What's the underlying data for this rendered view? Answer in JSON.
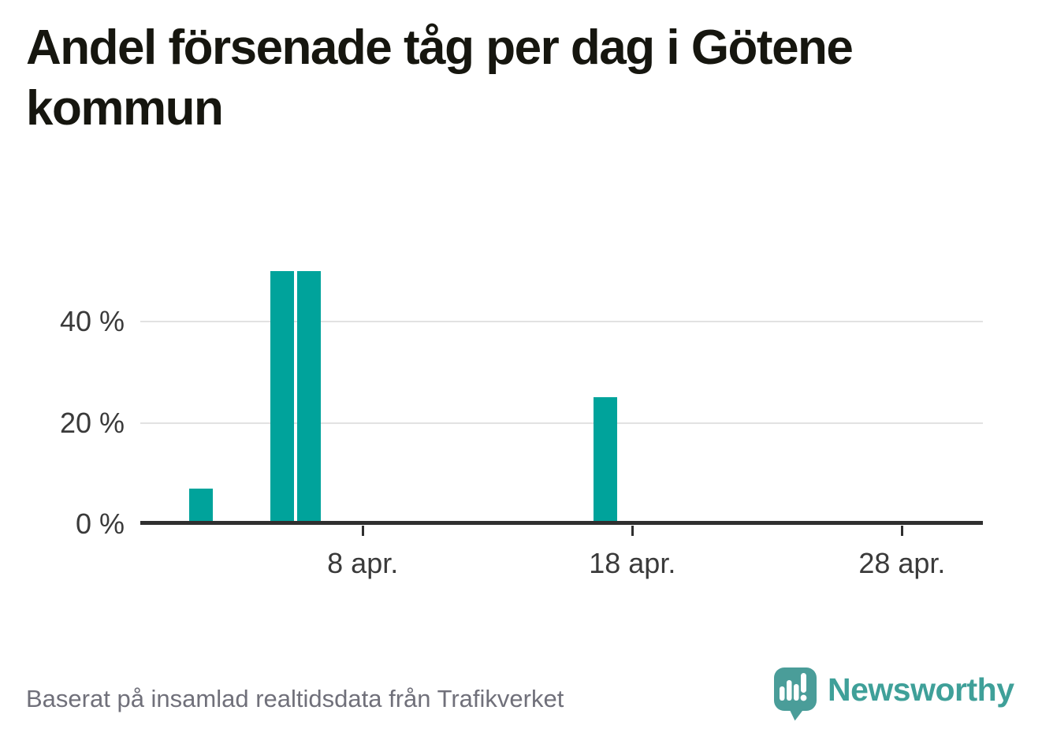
{
  "page": {
    "title_line1": "Andel försenade tåg per dag i Götene",
    "title_line2": "kommun",
    "footer_note": "Baserat på insamlad realtidsdata från Trafikverket",
    "brand": {
      "name": "Newsworthy",
      "wordmark_color": "#3fa099",
      "mark_color": "#4a9d99",
      "mark_icon": "bar-chart-exclamation-bubble-icon"
    }
  },
  "chart_data": {
    "type": "bar",
    "title": "Andel försenade tåg per dag i Götene kommun",
    "xlabel": "",
    "ylabel": "",
    "unit": "%",
    "bar_color": "#00a39b",
    "grid": "horizontal",
    "legend": "none",
    "x_domain_note": "daily series for April; days without a bar are 0 %",
    "xlim_days_april": [
      -0.25,
      31
    ],
    "ylim": [
      0,
      52
    ],
    "points": [
      {
        "day": 2,
        "date_label": "2 apr.",
        "value_pct": 7
      },
      {
        "day": 5,
        "date_label": "5 apr.",
        "value_pct": 50
      },
      {
        "day": 6,
        "date_label": "6 apr.",
        "value_pct": 50
      },
      {
        "day": 17,
        "date_label": "17 apr.",
        "value_pct": 25
      }
    ],
    "x_ticks": [
      {
        "day": 8,
        "label": "8 apr."
      },
      {
        "day": 18,
        "label": "18 apr."
      },
      {
        "day": 28,
        "label": "28 apr."
      }
    ],
    "y_ticks": [
      {
        "value": 0,
        "label": "0 %"
      },
      {
        "value": 20,
        "label": "20 %"
      },
      {
        "value": 40,
        "label": "40 %"
      }
    ]
  }
}
